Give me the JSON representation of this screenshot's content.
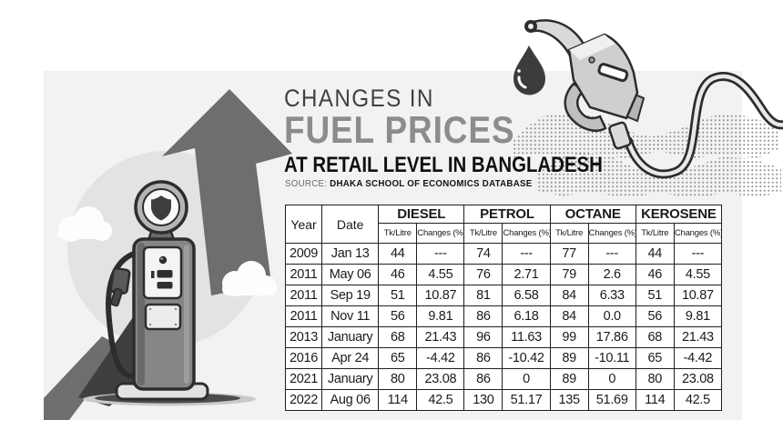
{
  "page": {
    "background": "#ffffff",
    "panel_bg": "#f2f2f2"
  },
  "header": {
    "title_line1": "CHANGES IN",
    "title_line2": "FUEL PRICES",
    "title_line3": "AT RETAIL LEVEL IN BANGLADESH",
    "source_label": "SOURCE:",
    "source_text": "DHAKA SCHOOL OF ECONOMICS DATABASE"
  },
  "colors": {
    "title_primary": "#414141",
    "title_accent": "#8c8c8c",
    "text": "#1b1b1b",
    "table_border": "#1f1f1f",
    "arrow_gray": "#6e6e6e",
    "dark_gray": "#3f3f3f",
    "circle_gray": "#e3e3e3"
  },
  "illustrations": {
    "fuel_pump": "vintage-fuel-pump",
    "up_arrow": "upward-trend-arrow",
    "fuel_nozzle": "fuel-nozzle-with-hose",
    "fuel_drop": "fuel-drop",
    "halftone": "halftone-dot-waves",
    "clouds": "clouds"
  },
  "table": {
    "col_year": "Year",
    "col_date": "Date",
    "groups": [
      {
        "label": "DIESEL"
      },
      {
        "label": "PETROL"
      },
      {
        "label": "OCTANE"
      },
      {
        "label": "KEROSENE"
      }
    ],
    "sub_price": "Tk/Litre",
    "sub_change": "Changes (%)"
  },
  "chart_data": {
    "type": "table",
    "title": "CHANGES IN FUEL PRICES AT RETAIL LEVEL IN BANGLADESH",
    "source": "DHAKA SCHOOL OF ECONOMICS DATABASE",
    "columns": [
      "Year",
      "Date",
      "DIESEL Tk/Litre",
      "DIESEL Changes (%)",
      "PETROL Tk/Litre",
      "PETROL Changes (%)",
      "OCTANE Tk/Litre",
      "OCTANE Changes (%)",
      "KEROSENE Tk/Litre",
      "KEROSENE Changes (%)"
    ],
    "rows": [
      [
        "2009",
        "Jan 13",
        "44",
        "---",
        "74",
        "---",
        "77",
        "---",
        "44",
        "---"
      ],
      [
        "2011",
        "May 06",
        "46",
        "4.55",
        "76",
        "2.71",
        "79",
        "2.6",
        "46",
        "4.55"
      ],
      [
        "2011",
        "Sep 19",
        "51",
        "10.87",
        "81",
        "6.58",
        "84",
        "6.33",
        "51",
        "10.87"
      ],
      [
        "2011",
        "Nov 11",
        "56",
        "9.81",
        "86",
        "6.18",
        "84",
        "0.0",
        "56",
        "9.81"
      ],
      [
        "2013",
        "January",
        "68",
        "21.43",
        "96",
        "11.63",
        "99",
        "17.86",
        "68",
        "21.43"
      ],
      [
        "2016",
        "Apr 24",
        "65",
        "-4.42",
        "86",
        "-10.42",
        "89",
        "-10.11",
        "65",
        "-4.42"
      ],
      [
        "2021",
        "January",
        "80",
        "23.08",
        "86",
        "0",
        "89",
        "0",
        "80",
        "23.08"
      ],
      [
        "2022",
        "Aug 06",
        "114",
        "42.5",
        "130",
        "51.17",
        "135",
        "51.69",
        "114",
        "42.5"
      ]
    ]
  }
}
